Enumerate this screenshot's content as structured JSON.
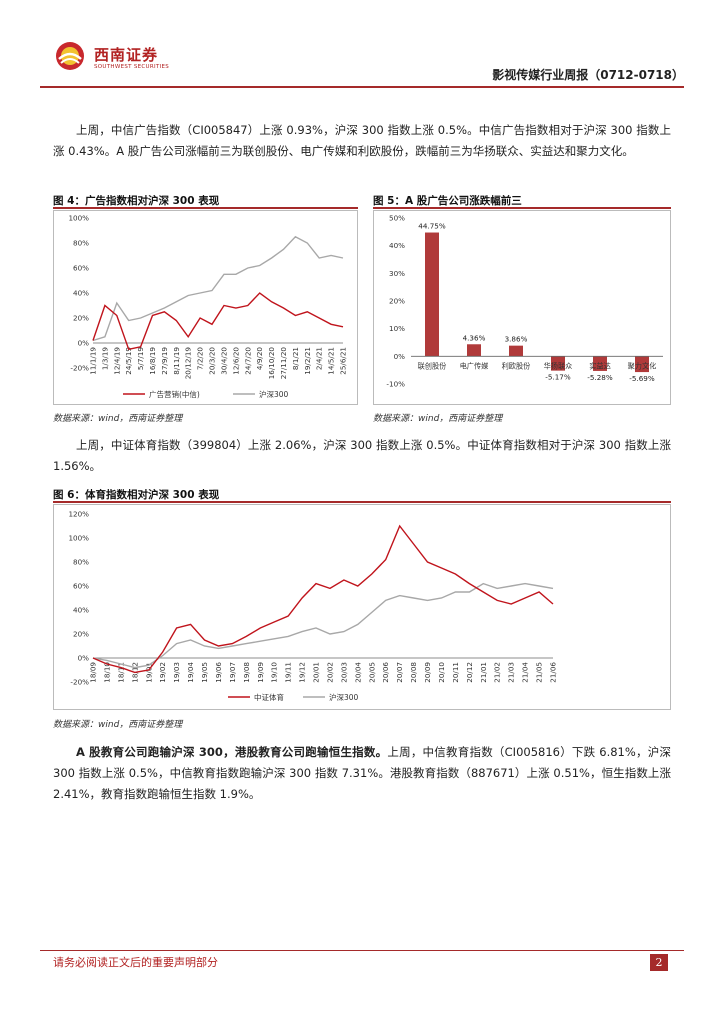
{
  "header": {
    "logo_cn": "西南证券",
    "logo_en": "SOUTHWEST SECURITIES",
    "report_title": "影视传媒行业周报（0712-0718）"
  },
  "paragraphs": {
    "p1": "上周，中信广告指数（CI005847）上涨 0.93%，沪深 300 指数上涨 0.5%。中信广告指数相对于沪深 300 指数上涨 0.43%。A 股广告公司涨幅前三为联创股份、电广传媒和利欧股份，跌幅前三为华扬联众、实益达和聚力文化。",
    "p2": "上周，中证体育指数（399804）上涨 2.06%，沪深 300 指数上涨 0.5%。中证体育指数相对于沪深 300 指数上涨 1.56%。",
    "p3_bold": "A 股教育公司跑输沪深 300，港股教育公司跑输恒生指数。",
    "p3_rest": "上周，中信教育指数（CI005816）下跌 6.81%，沪深 300 指数上涨 0.5%，中信教育指数跑输沪深 300 指数 7.31%。港股教育指数（887671）上涨 0.51%，恒生指数上涨 2.41%，教育指数跑输恒生指数 1.9%。"
  },
  "figures": {
    "fig4_title": "图 4：广告指数相对沪深 300 表现",
    "fig5_title": "图 5：A 股广告公司涨跌幅前三",
    "fig6_title": "图 6：体育指数相对沪深 300 表现",
    "source": "数据来源：wind，西南证券整理"
  },
  "chart_data": [
    {
      "type": "line",
      "x": [
        "11/1/19",
        "1/3/19",
        "12/4/19",
        "24/5/19",
        "5/7/19",
        "16/8/19",
        "27/9/19",
        "8/11/19",
        "20/12/19",
        "7/2/20",
        "20/3/20",
        "30/4/20",
        "12/6/20",
        "24/7/20",
        "4/9/20",
        "16/10/20",
        "27/11/20",
        "8/1/21",
        "19/2/21",
        "2/4/21",
        "14/5/21",
        "25/6/21"
      ],
      "y_ticks": [
        "100%",
        "80%",
        "60%",
        "40%",
        "20%",
        "0%",
        "-20%"
      ],
      "ylim": [
        -20,
        100
      ],
      "legend_placement": "bottom",
      "series": [
        {
          "name": "广告营销(中信)",
          "color": "#c0141c",
          "values": [
            2,
            30,
            22,
            -5,
            -3,
            22,
            25,
            18,
            5,
            20,
            15,
            30,
            28,
            30,
            40,
            33,
            28,
            22,
            25,
            20,
            15,
            13
          ]
        },
        {
          "name": "沪深300",
          "color": "#a8a8a8",
          "values": [
            2,
            5,
            32,
            18,
            20,
            24,
            28,
            33,
            38,
            40,
            42,
            55,
            55,
            60,
            62,
            68,
            75,
            85,
            80,
            68,
            70,
            68
          ]
        }
      ]
    },
    {
      "type": "bar",
      "categories": [
        "联创股份",
        "电广传媒",
        "利欧股份",
        "华扬联众",
        "实益达",
        "聚力文化"
      ],
      "values": [
        44.75,
        4.36,
        3.86,
        -5.17,
        -5.28,
        -5.69
      ],
      "value_labels": [
        "44.75%",
        "4.36%",
        "3.86%",
        "-5.17%",
        "-5.28%",
        "-5.69%"
      ],
      "y_ticks": [
        "50%",
        "40%",
        "30%",
        "20%",
        "10%",
        "0%",
        "-10%"
      ],
      "ylim": [
        -10,
        50
      ],
      "color": "#b03a3a"
    },
    {
      "type": "line",
      "x": [
        "18/09",
        "18/10",
        "18/11",
        "18/12",
        "19/01",
        "19/02",
        "19/03",
        "19/04",
        "19/05",
        "19/06",
        "19/07",
        "19/08",
        "19/09",
        "19/10",
        "19/11",
        "19/12",
        "20/01",
        "20/02",
        "20/03",
        "20/04",
        "20/05",
        "20/06",
        "20/07",
        "20/08",
        "20/09",
        "20/10",
        "20/11",
        "20/12",
        "21/01",
        "21/02",
        "21/03",
        "21/04",
        "21/05",
        "21/06"
      ],
      "y_ticks": [
        "120%",
        "100%",
        "80%",
        "60%",
        "40%",
        "20%",
        "0%",
        "-20%"
      ],
      "ylim": [
        -20,
        120
      ],
      "legend_placement": "bottom",
      "series": [
        {
          "name": "中证体育",
          "color": "#c0141c",
          "values": [
            0,
            -5,
            -8,
            -12,
            -10,
            5,
            25,
            28,
            15,
            10,
            12,
            18,
            25,
            30,
            35,
            50,
            62,
            58,
            65,
            60,
            70,
            82,
            110,
            95,
            80,
            75,
            70,
            62,
            55,
            48,
            45,
            50,
            55,
            45
          ]
        },
        {
          "name": "沪深300",
          "color": "#a8a8a8",
          "values": [
            0,
            -2,
            -5,
            -8,
            -6,
            2,
            12,
            15,
            10,
            8,
            10,
            12,
            14,
            16,
            18,
            22,
            25,
            20,
            22,
            28,
            38,
            48,
            52,
            50,
            48,
            50,
            55,
            55,
            62,
            58,
            60,
            62,
            60,
            58
          ]
        }
      ]
    }
  ],
  "footer": {
    "disclaimer": "请务必阅读正文后的重要声明部分",
    "page_number": "2"
  }
}
